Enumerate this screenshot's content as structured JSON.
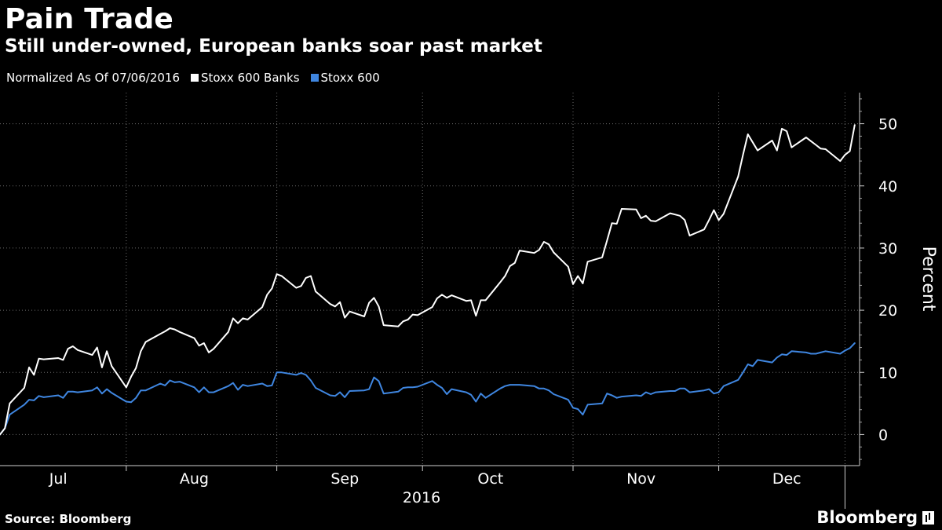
{
  "title": "Pain Trade",
  "subtitle": "Still under-owned, European banks soar past market",
  "legend": {
    "note": "Normalized As Of 07/06/2016",
    "items": [
      {
        "label": "Stoxx 600 Banks",
        "color": "#ffffff"
      },
      {
        "label": "Stoxx 600",
        "color": "#3f86e0"
      }
    ]
  },
  "source": "Source: Bloomberg",
  "brand": "Bloomberg",
  "chart_data": {
    "type": "line",
    "ylabel": "Percent",
    "xlabel": "2016",
    "ylim": [
      -5,
      55
    ],
    "yticks": [
      0,
      10,
      20,
      30,
      40,
      50
    ],
    "xlim": [
      "2016-07-06",
      "2016-12-30"
    ],
    "month_labels": [
      {
        "label": "Jul",
        "date": "2016-07-18"
      },
      {
        "label": "Aug",
        "date": "2016-08-15"
      },
      {
        "label": "Sep",
        "date": "2016-09-15"
      },
      {
        "label": "Oct",
        "date": "2016-10-15"
      },
      {
        "label": "Nov",
        "date": "2016-11-15"
      },
      {
        "label": "Dec",
        "date": "2016-12-15"
      }
    ],
    "month_gridlines": [
      "2016-08-01",
      "2016-09-01",
      "2016-10-01",
      "2016-11-01",
      "2016-12-01"
    ],
    "grid": true,
    "legend_position": "top-left",
    "series": [
      {
        "name": "Stoxx 600 Banks",
        "color": "#ffffff",
        "points": [
          [
            "2016-07-06",
            0
          ],
          [
            "2016-07-07",
            1
          ],
          [
            "2016-07-08",
            5
          ],
          [
            "2016-07-11",
            7.5
          ],
          [
            "2016-07-12",
            10.8
          ],
          [
            "2016-07-13",
            9.6
          ],
          [
            "2016-07-14",
            12.2
          ],
          [
            "2016-07-15",
            12.1
          ],
          [
            "2016-07-18",
            12.3
          ],
          [
            "2016-07-19",
            12
          ],
          [
            "2016-07-20",
            13.8
          ],
          [
            "2016-07-21",
            14.2
          ],
          [
            "2016-07-22",
            13.6
          ],
          [
            "2016-07-25",
            12.8
          ],
          [
            "2016-07-26",
            14
          ],
          [
            "2016-07-27",
            10.8
          ],
          [
            "2016-07-28",
            13.4
          ],
          [
            "2016-07-29",
            11
          ],
          [
            "2016-08-01",
            7.6
          ],
          [
            "2016-08-02",
            9.3
          ],
          [
            "2016-08-03",
            10.7
          ],
          [
            "2016-08-04",
            13.4
          ],
          [
            "2016-08-05",
            14.9
          ],
          [
            "2016-08-08",
            16.2
          ],
          [
            "2016-08-09",
            16.6
          ],
          [
            "2016-08-10",
            17.1
          ],
          [
            "2016-08-11",
            16.9
          ],
          [
            "2016-08-12",
            16.5
          ],
          [
            "2016-08-15",
            15.5
          ],
          [
            "2016-08-16",
            14.3
          ],
          [
            "2016-08-17",
            14.7
          ],
          [
            "2016-08-18",
            13.2
          ],
          [
            "2016-08-19",
            13.8
          ],
          [
            "2016-08-22",
            16.5
          ],
          [
            "2016-08-23",
            18.7
          ],
          [
            "2016-08-24",
            17.9
          ],
          [
            "2016-08-25",
            18.7
          ],
          [
            "2016-08-26",
            18.5
          ],
          [
            "2016-08-29",
            20.5
          ],
          [
            "2016-08-30",
            22.5
          ],
          [
            "2016-08-31",
            23.5
          ],
          [
            "2016-09-01",
            25.8
          ],
          [
            "2016-09-02",
            25.5
          ],
          [
            "2016-09-05",
            23.6
          ],
          [
            "2016-09-06",
            23.9
          ],
          [
            "2016-09-07",
            25.2
          ],
          [
            "2016-09-08",
            25.5
          ],
          [
            "2016-09-09",
            23
          ],
          [
            "2016-09-12",
            21
          ],
          [
            "2016-09-13",
            20.6
          ],
          [
            "2016-09-14",
            21.3
          ],
          [
            "2016-09-15",
            18.8
          ],
          [
            "2016-09-16",
            19.8
          ],
          [
            "2016-09-19",
            19
          ],
          [
            "2016-09-20",
            21.2
          ],
          [
            "2016-09-21",
            22
          ],
          [
            "2016-09-22",
            20.6
          ],
          [
            "2016-09-23",
            17.6
          ],
          [
            "2016-09-26",
            17.4
          ],
          [
            "2016-09-27",
            18.2
          ],
          [
            "2016-09-28",
            18.5
          ],
          [
            "2016-09-29",
            19.3
          ],
          [
            "2016-09-30",
            19.2
          ],
          [
            "2016-10-03",
            20.5
          ],
          [
            "2016-10-04",
            21.9
          ],
          [
            "2016-10-05",
            22.5
          ],
          [
            "2016-10-06",
            22
          ],
          [
            "2016-10-07",
            22.4
          ],
          [
            "2016-10-10",
            21.5
          ],
          [
            "2016-10-11",
            21.6
          ],
          [
            "2016-10-12",
            19.1
          ],
          [
            "2016-10-13",
            21.6
          ],
          [
            "2016-10-14",
            21.6
          ],
          [
            "2016-10-17",
            24.5
          ],
          [
            "2016-10-18",
            25.5
          ],
          [
            "2016-10-19",
            27.1
          ],
          [
            "2016-10-20",
            27.6
          ],
          [
            "2016-10-21",
            29.6
          ],
          [
            "2016-10-24",
            29.2
          ],
          [
            "2016-10-25",
            29.7
          ],
          [
            "2016-10-26",
            31
          ],
          [
            "2016-10-27",
            30.6
          ],
          [
            "2016-10-28",
            29.3
          ],
          [
            "2016-10-31",
            27
          ],
          [
            "2016-11-01",
            24.2
          ],
          [
            "2016-11-02",
            25.5
          ],
          [
            "2016-11-03",
            24.3
          ],
          [
            "2016-11-04",
            27.8
          ],
          [
            "2016-11-07",
            28.5
          ],
          [
            "2016-11-08",
            31.2
          ],
          [
            "2016-11-09",
            34
          ],
          [
            "2016-11-10",
            33.9
          ],
          [
            "2016-11-11",
            36.3
          ],
          [
            "2016-11-14",
            36.2
          ],
          [
            "2016-11-15",
            34.8
          ],
          [
            "2016-11-16",
            35.2
          ],
          [
            "2016-11-17",
            34.4
          ],
          [
            "2016-11-18",
            34.3
          ],
          [
            "2016-11-21",
            35.6
          ],
          [
            "2016-11-22",
            35.4
          ],
          [
            "2016-11-23",
            35.2
          ],
          [
            "2016-11-24",
            34.5
          ],
          [
            "2016-11-25",
            32
          ],
          [
            "2016-11-28",
            33
          ],
          [
            "2016-11-29",
            34.5
          ],
          [
            "2016-11-30",
            36.1
          ],
          [
            "2016-12-01",
            34.5
          ],
          [
            "2016-12-02",
            35.5
          ],
          [
            "2016-12-05",
            41.5
          ],
          [
            "2016-12-06",
            45
          ],
          [
            "2016-12-07",
            48.3
          ],
          [
            "2016-12-08",
            47
          ],
          [
            "2016-12-09",
            45.7
          ],
          [
            "2016-12-12",
            47.3
          ],
          [
            "2016-12-13",
            45.7
          ],
          [
            "2016-12-14",
            49.2
          ],
          [
            "2016-12-15",
            48.8
          ],
          [
            "2016-12-16",
            46.2
          ],
          [
            "2016-12-19",
            47.8
          ],
          [
            "2016-12-20",
            47.2
          ],
          [
            "2016-12-21",
            46.6
          ],
          [
            "2016-12-22",
            46
          ],
          [
            "2016-12-23",
            45.9
          ],
          [
            "2016-12-26",
            44
          ],
          [
            "2016-12-27",
            45
          ],
          [
            "2016-12-28",
            45.6
          ],
          [
            "2016-12-29",
            49.8
          ]
        ]
      },
      {
        "name": "Stoxx 600",
        "color": "#3f86e0",
        "points": [
          [
            "2016-07-06",
            0
          ],
          [
            "2016-07-07",
            1
          ],
          [
            "2016-07-08",
            3.2
          ],
          [
            "2016-07-11",
            4.8
          ],
          [
            "2016-07-12",
            5.6
          ],
          [
            "2016-07-13",
            5.5
          ],
          [
            "2016-07-14",
            6.2
          ],
          [
            "2016-07-15",
            6
          ],
          [
            "2016-07-18",
            6.3
          ],
          [
            "2016-07-19",
            5.9
          ],
          [
            "2016-07-20",
            6.9
          ],
          [
            "2016-07-21",
            6.9
          ],
          [
            "2016-07-22",
            6.8
          ],
          [
            "2016-07-25",
            7.1
          ],
          [
            "2016-07-26",
            7.6
          ],
          [
            "2016-07-27",
            6.6
          ],
          [
            "2016-07-28",
            7.3
          ],
          [
            "2016-07-29",
            6.7
          ],
          [
            "2016-08-01",
            5.3
          ],
          [
            "2016-08-02",
            5.2
          ],
          [
            "2016-08-03",
            5.9
          ],
          [
            "2016-08-04",
            7.1
          ],
          [
            "2016-08-05",
            7.1
          ],
          [
            "2016-08-08",
            8.2
          ],
          [
            "2016-08-09",
            7.9
          ],
          [
            "2016-08-10",
            8.7
          ],
          [
            "2016-08-11",
            8.4
          ],
          [
            "2016-08-12",
            8.5
          ],
          [
            "2016-08-15",
            7.6
          ],
          [
            "2016-08-16",
            6.8
          ],
          [
            "2016-08-17",
            7.6
          ],
          [
            "2016-08-18",
            6.8
          ],
          [
            "2016-08-19",
            6.8
          ],
          [
            "2016-08-22",
            7.8
          ],
          [
            "2016-08-23",
            8.3
          ],
          [
            "2016-08-24",
            7.2
          ],
          [
            "2016-08-25",
            8
          ],
          [
            "2016-08-26",
            7.8
          ],
          [
            "2016-08-29",
            8.2
          ],
          [
            "2016-08-30",
            7.8
          ],
          [
            "2016-08-31",
            7.9
          ],
          [
            "2016-09-01",
            10
          ],
          [
            "2016-09-02",
            10
          ],
          [
            "2016-09-05",
            9.6
          ],
          [
            "2016-09-06",
            9.9
          ],
          [
            "2016-09-07",
            9.6
          ],
          [
            "2016-09-08",
            8.7
          ],
          [
            "2016-09-09",
            7.5
          ],
          [
            "2016-09-12",
            6.3
          ],
          [
            "2016-09-13",
            6.2
          ],
          [
            "2016-09-14",
            6.8
          ],
          [
            "2016-09-15",
            6
          ],
          [
            "2016-09-16",
            7
          ],
          [
            "2016-09-19",
            7.1
          ],
          [
            "2016-09-20",
            7.3
          ],
          [
            "2016-09-21",
            9.2
          ],
          [
            "2016-09-22",
            8.6
          ],
          [
            "2016-09-23",
            6.6
          ],
          [
            "2016-09-26",
            6.9
          ],
          [
            "2016-09-27",
            7.5
          ],
          [
            "2016-09-28",
            7.6
          ],
          [
            "2016-09-29",
            7.6
          ],
          [
            "2016-09-30",
            7.7
          ],
          [
            "2016-10-03",
            8.6
          ],
          [
            "2016-10-04",
            8
          ],
          [
            "2016-10-05",
            7.5
          ],
          [
            "2016-10-06",
            6.5
          ],
          [
            "2016-10-07",
            7.3
          ],
          [
            "2016-10-10",
            6.8
          ],
          [
            "2016-10-11",
            6.4
          ],
          [
            "2016-10-12",
            5.3
          ],
          [
            "2016-10-13",
            6.6
          ],
          [
            "2016-10-14",
            5.9
          ],
          [
            "2016-10-17",
            7.4
          ],
          [
            "2016-10-18",
            7.8
          ],
          [
            "2016-10-19",
            8
          ],
          [
            "2016-10-20",
            8
          ],
          [
            "2016-10-21",
            8
          ],
          [
            "2016-10-24",
            7.8
          ],
          [
            "2016-10-25",
            7.4
          ],
          [
            "2016-10-26",
            7.4
          ],
          [
            "2016-10-27",
            7.1
          ],
          [
            "2016-10-28",
            6.5
          ],
          [
            "2016-10-31",
            5.6
          ],
          [
            "2016-11-01",
            4.3
          ],
          [
            "2016-11-02",
            4.1
          ],
          [
            "2016-11-03",
            3.2
          ],
          [
            "2016-11-04",
            4.8
          ],
          [
            "2016-11-07",
            5
          ],
          [
            "2016-11-08",
            6.6
          ],
          [
            "2016-11-09",
            6.3
          ],
          [
            "2016-11-10",
            5.9
          ],
          [
            "2016-11-11",
            6.1
          ],
          [
            "2016-11-14",
            6.3
          ],
          [
            "2016-11-15",
            6.2
          ],
          [
            "2016-11-16",
            6.8
          ],
          [
            "2016-11-17",
            6.5
          ],
          [
            "2016-11-18",
            6.8
          ],
          [
            "2016-11-21",
            7
          ],
          [
            "2016-11-22",
            7
          ],
          [
            "2016-11-23",
            7.4
          ],
          [
            "2016-11-24",
            7.4
          ],
          [
            "2016-11-25",
            6.8
          ],
          [
            "2016-11-28",
            7.1
          ],
          [
            "2016-11-29",
            7.3
          ],
          [
            "2016-11-30",
            6.6
          ],
          [
            "2016-12-01",
            6.8
          ],
          [
            "2016-12-02",
            7.8
          ],
          [
            "2016-12-05",
            8.8
          ],
          [
            "2016-12-06",
            10
          ],
          [
            "2016-12-07",
            11.3
          ],
          [
            "2016-12-08",
            11
          ],
          [
            "2016-12-09",
            12
          ],
          [
            "2016-12-12",
            11.6
          ],
          [
            "2016-12-13",
            12.4
          ],
          [
            "2016-12-14",
            12.9
          ],
          [
            "2016-12-15",
            12.8
          ],
          [
            "2016-12-16",
            13.4
          ],
          [
            "2016-12-19",
            13.2
          ],
          [
            "2016-12-20",
            13
          ],
          [
            "2016-12-21",
            13
          ],
          [
            "2016-12-22",
            13.2
          ],
          [
            "2016-12-23",
            13.4
          ],
          [
            "2016-12-26",
            13
          ],
          [
            "2016-12-27",
            13.5
          ],
          [
            "2016-12-28",
            13.9
          ],
          [
            "2016-12-29",
            14.7
          ]
        ]
      }
    ]
  }
}
